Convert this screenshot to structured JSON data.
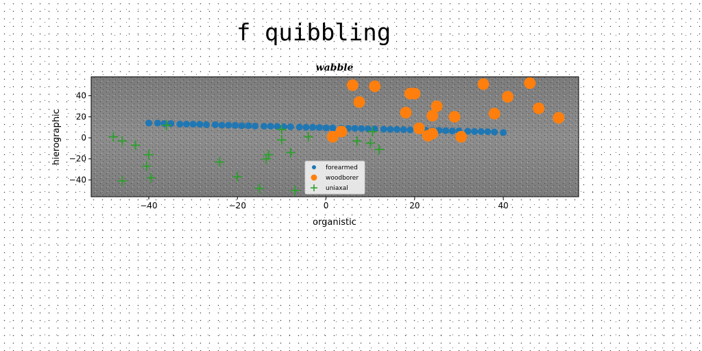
{
  "suptitle": "f quibbling",
  "chart_data": {
    "type": "scatter",
    "title": "wabble",
    "xlabel": "organistic",
    "ylabel": "hierographic",
    "xlim": [
      -53,
      57
    ],
    "ylim": [
      -56,
      58
    ],
    "xticks": [
      -40,
      -20,
      0,
      20,
      40
    ],
    "yticks": [
      -40,
      -20,
      0,
      20,
      40
    ],
    "grid": false,
    "legend_position": "lower-center",
    "series": [
      {
        "name": "forearmed",
        "marker": "circle-small",
        "color": "#1f77b4",
        "x": [
          -40,
          -38,
          -36.5,
          -35,
          -33,
          -31.5,
          -30,
          -28.5,
          -27,
          -25,
          -23.5,
          -22,
          -20.5,
          -19,
          -17.5,
          -16,
          -14,
          -12.5,
          -11,
          -9.5,
          -8,
          -6,
          -4.5,
          -3,
          -1.5,
          0,
          1.5,
          3.5,
          5,
          6.5,
          8,
          9.5,
          11,
          13,
          14.5,
          16,
          17.5,
          19,
          21,
          22.5,
          24,
          25.5,
          27,
          28.5,
          30,
          32,
          33.5,
          35,
          36.5,
          38,
          40
        ],
        "y": [
          14,
          14,
          13.5,
          13.5,
          13,
          13,
          13,
          12.8,
          12.5,
          12.5,
          12,
          12,
          11.8,
          11.5,
          11.5,
          11.2,
          11,
          11,
          10.8,
          10.5,
          10.5,
          10.2,
          10,
          10,
          9.8,
          9.5,
          9.5,
          9.2,
          9,
          9,
          8.8,
          8.5,
          8.5,
          8.2,
          8,
          8,
          7.8,
          7.5,
          7.5,
          7.2,
          7,
          7,
          6.8,
          6.5,
          6.5,
          6.2,
          6,
          6,
          5.8,
          5.5,
          5
        ]
      },
      {
        "name": "woodborer",
        "marker": "circle-large",
        "color": "#ff7f0e",
        "x": [
          6,
          11,
          7.5,
          19,
          20,
          25,
          24,
          18,
          35.5,
          38,
          41,
          46,
          48,
          52.5,
          29,
          21,
          24,
          23,
          30.5,
          1.5,
          3.5
        ],
        "y": [
          50,
          49,
          34,
          42,
          42,
          30,
          21,
          24,
          51,
          23,
          39,
          52,
          28,
          19,
          20,
          9,
          4,
          2,
          1,
          1,
          6
        ]
      },
      {
        "name": "uniaxal",
        "marker": "plus",
        "color": "#2ca02c",
        "x": [
          -48,
          -46,
          -43,
          -40,
          -40.5,
          -39.5,
          -46,
          -36,
          -24,
          -20,
          -15,
          -10,
          -13,
          -13.5,
          -8,
          -7,
          -4,
          -10,
          7,
          10,
          12,
          10.5
        ],
        "y": [
          1,
          -3,
          -7,
          -16,
          -27,
          -38,
          -41,
          12,
          -23,
          -37,
          -48,
          -2,
          -16,
          -20,
          -14,
          -50,
          1,
          8,
          -3,
          -5,
          -11,
          6
        ]
      }
    ]
  }
}
